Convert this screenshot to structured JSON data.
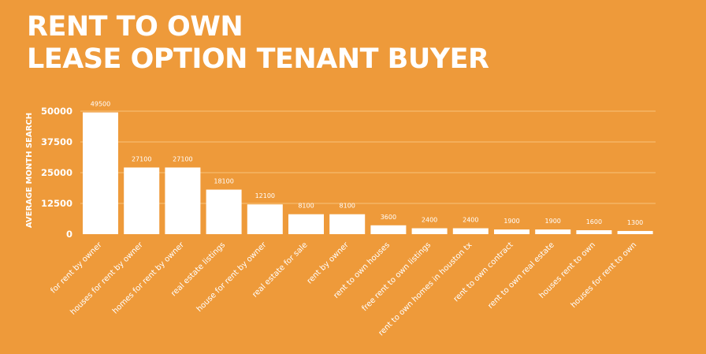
{
  "title_lines": [
    "RENT TO OWN",
    "LEASE OPTION TENANT BUYER"
  ],
  "colors": {
    "background": "#ee9a3a",
    "bars": "#ffffff",
    "text": "#ffffff",
    "grid": "#f8c27a"
  },
  "chart_data": {
    "type": "bar",
    "title": "RENT TO OWN LEASE OPTION TENANT BUYER",
    "ylabel": "AVERAGE MONTH SEARCH",
    "xlabel": "",
    "ylim": [
      0,
      50000
    ],
    "yticks": [
      0,
      12500,
      25000,
      37500,
      50000
    ],
    "grid": true,
    "categories": [
      "for rent by owner",
      "houses for rent by owner",
      "homes for rent by owner",
      "real estate listings",
      "house for rent by owner",
      "real estate for sale",
      "rent by owner",
      "rent to own houses",
      "free rent to own listings",
      "rent to own homes in houston tx",
      "rent to own contract",
      "rent to own real estate",
      "houses rent to own",
      "houses for rent to own"
    ],
    "values": [
      49500,
      27100,
      27100,
      18100,
      12100,
      8100,
      8100,
      3600,
      2400,
      2400,
      1900,
      1900,
      1600,
      1300
    ],
    "data_labels": [
      "49500",
      "27100",
      "27100",
      "18100",
      "12100",
      "8100",
      "8100",
      "3600",
      "2400",
      "2400",
      "1900",
      "1900",
      "1600",
      "1300"
    ]
  }
}
